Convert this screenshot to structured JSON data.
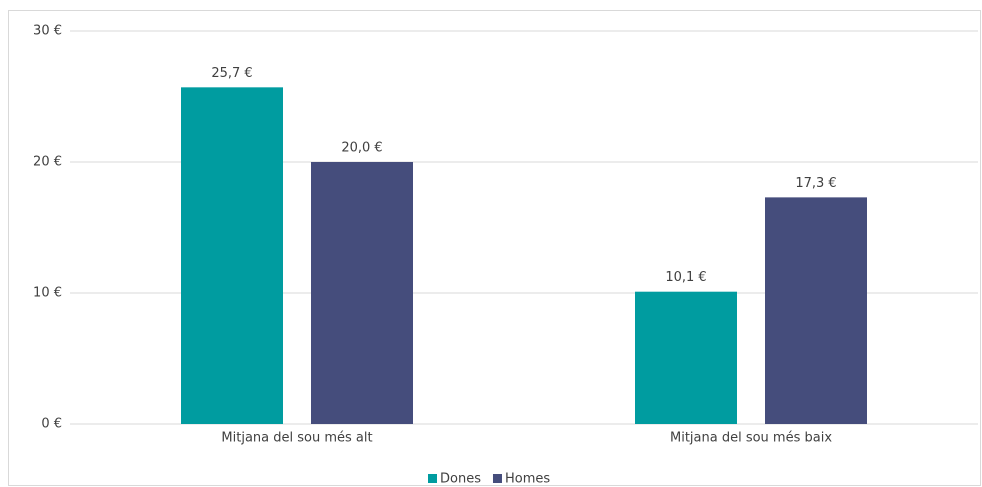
{
  "chart_data": {
    "type": "bar",
    "categories": [
      "Mitjana del sou més alt",
      "Mitjana del sou més baix"
    ],
    "series": [
      {
        "name": "Dones",
        "color": "#009ca0",
        "values": [
          25.7,
          10.1
        ],
        "value_labels": [
          "25,7 €",
          "10,1 €"
        ]
      },
      {
        "name": "Homes",
        "color": "#454d7c",
        "values": [
          20.0,
          17.3
        ],
        "value_labels": [
          "20,0 €",
          "17,3 €"
        ]
      }
    ],
    "ylim": [
      0,
      30
    ],
    "yticks": [
      {
        "value": 0,
        "label": "0 €"
      },
      {
        "value": 10,
        "label": "10 €"
      },
      {
        "value": 20,
        "label": "20 €"
      },
      {
        "value": 30,
        "label": "30 €"
      }
    ],
    "grid": true,
    "legend": "bottom"
  }
}
